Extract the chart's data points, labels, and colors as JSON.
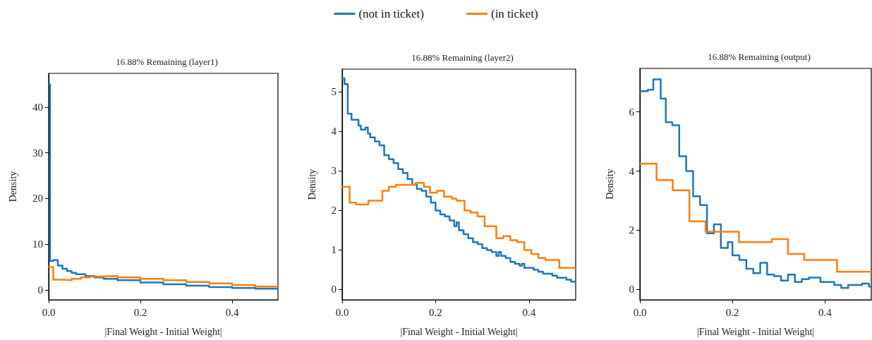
{
  "chart_data": [
    {
      "type": "step",
      "title": "16.88% Remaining (layer1)",
      "xlabel": "|Final Weight - Initial Weight|",
      "ylabel": "Density",
      "legend": "top",
      "grid": false,
      "xlim": [
        0,
        0.5
      ],
      "xticks": [
        {
          "value": 0,
          "label": "0.0"
        },
        {
          "value": 0.2,
          "label": "0.2"
        },
        {
          "value": 0.4,
          "label": "0.4"
        }
      ],
      "ylim": [
        -2.2,
        47.4
      ],
      "yticks": [
        0,
        10,
        20,
        30,
        40
      ],
      "series": [
        {
          "name": "(not in ticket)",
          "color": "#1f77b4",
          "x": [
            0,
            0.003,
            0.01,
            0.02,
            0.03,
            0.04,
            0.05,
            0.06,
            0.08,
            0.1,
            0.12,
            0.15,
            0.2,
            0.25,
            0.3,
            0.35,
            0.4,
            0.45,
            0.5
          ],
          "values": [
            45,
            6.3,
            6.5,
            5.3,
            4.6,
            4.1,
            3.7,
            3.4,
            3.0,
            2.7,
            2.4,
            2.1,
            1.6,
            1.2,
            0.9,
            0.6,
            0.4,
            0.25,
            0.15
          ]
        },
        {
          "name": "(in ticket)",
          "color": "#ff7f0e",
          "x": [
            0,
            0.01,
            0.03,
            0.05,
            0.07,
            0.09,
            0.11,
            0.15,
            0.2,
            0.25,
            0.3,
            0.35,
            0.4,
            0.45,
            0.5
          ],
          "values": [
            5.0,
            2.2,
            2.1,
            2.4,
            2.7,
            2.9,
            3.0,
            2.7,
            2.4,
            2.1,
            1.7,
            1.4,
            1.0,
            0.7,
            0.5
          ]
        }
      ]
    },
    {
      "type": "step",
      "title": "16.88% Remaining (layer2)",
      "xlabel": "|Final Weight - Initial Weight|",
      "ylabel": "Density",
      "grid": false,
      "xlim": [
        0,
        0.5
      ],
      "xticks": [
        {
          "value": 0,
          "label": "0.0"
        },
        {
          "value": 0.2,
          "label": "0.2"
        },
        {
          "value": 0.4,
          "label": "0.4"
        }
      ],
      "ylim": [
        -0.26,
        5.58
      ],
      "yticks": [
        0,
        1,
        2,
        3,
        4,
        5
      ],
      "series": [
        {
          "color": "#1f77b4",
          "x": [
            0,
            0.005,
            0.012,
            0.02,
            0.03,
            0.035,
            0.04,
            0.05,
            0.055,
            0.06,
            0.07,
            0.08,
            0.09,
            0.1,
            0.11,
            0.12,
            0.13,
            0.14,
            0.15,
            0.16,
            0.17,
            0.18,
            0.19,
            0.2,
            0.21,
            0.22,
            0.23,
            0.24,
            0.245,
            0.25,
            0.26,
            0.27,
            0.28,
            0.29,
            0.3,
            0.31,
            0.32,
            0.33,
            0.335,
            0.34,
            0.35,
            0.36,
            0.37,
            0.38,
            0.385,
            0.39,
            0.4,
            0.41,
            0.42,
            0.43,
            0.44,
            0.45,
            0.46,
            0.47,
            0.48,
            0.49,
            0.5
          ],
          "values": [
            5.35,
            5.2,
            4.45,
            4.3,
            4.3,
            4.15,
            4.05,
            4.1,
            3.95,
            3.85,
            3.75,
            3.65,
            3.4,
            3.3,
            3.2,
            3.05,
            2.95,
            2.8,
            2.65,
            2.55,
            2.5,
            2.35,
            2.2,
            2.0,
            1.9,
            1.85,
            1.75,
            1.6,
            1.7,
            1.5,
            1.4,
            1.3,
            1.2,
            1.15,
            1.05,
            1.0,
            0.95,
            0.85,
            0.95,
            0.85,
            0.8,
            0.7,
            0.65,
            0.6,
            0.65,
            0.55,
            0.55,
            0.5,
            0.45,
            0.4,
            0.4,
            0.35,
            0.3,
            0.3,
            0.25,
            0.2,
            0.2
          ]
        },
        {
          "color": "#ff7f0e",
          "x": [
            0,
            0.016,
            0.03,
            0.056,
            0.086,
            0.1,
            0.115,
            0.157,
            0.175,
            0.188,
            0.203,
            0.218,
            0.235,
            0.245,
            0.262,
            0.275,
            0.29,
            0.305,
            0.33,
            0.345,
            0.36,
            0.375,
            0.39,
            0.405,
            0.42,
            0.435,
            0.465,
            0.5
          ],
          "values": [
            2.6,
            2.2,
            2.15,
            2.25,
            2.5,
            2.6,
            2.65,
            2.7,
            2.6,
            2.45,
            2.5,
            2.35,
            2.3,
            2.25,
            2.0,
            1.95,
            1.85,
            1.6,
            1.3,
            1.35,
            1.25,
            1.2,
            1.0,
            0.9,
            0.8,
            0.75,
            0.55,
            0.55
          ]
        }
      ]
    },
    {
      "type": "step",
      "title": "16.88% Remaining (output)",
      "xlabel": "|Final Weight - Initial Weight|",
      "ylabel": "Density",
      "grid": false,
      "xlim": [
        0,
        0.5
      ],
      "xticks": [
        {
          "value": 0,
          "label": "0.0"
        },
        {
          "value": 0.2,
          "label": "0.2"
        },
        {
          "value": 0.4,
          "label": "0.4"
        }
      ],
      "ylim": [
        -0.35,
        7.47
      ],
      "yticks": [
        0,
        2,
        4,
        6
      ],
      "series": [
        {
          "color": "#1f77b4",
          "x": [
            0,
            0.017,
            0.029,
            0.045,
            0.056,
            0.07,
            0.085,
            0.1,
            0.115,
            0.13,
            0.145,
            0.16,
            0.175,
            0.19,
            0.2,
            0.215,
            0.23,
            0.245,
            0.26,
            0.275,
            0.29,
            0.305,
            0.32,
            0.335,
            0.35,
            0.365,
            0.38,
            0.39,
            0.41,
            0.42,
            0.435,
            0.45,
            0.465,
            0.48,
            0.495,
            0.5
          ],
          "values": [
            6.7,
            6.75,
            7.1,
            6.45,
            5.65,
            5.55,
            4.5,
            4.0,
            3.15,
            2.85,
            1.9,
            2.2,
            1.4,
            1.6,
            1.15,
            1.0,
            0.7,
            0.55,
            0.9,
            0.5,
            0.45,
            0.3,
            0.5,
            0.25,
            0.35,
            0.4,
            0.4,
            0.25,
            0.25,
            0.15,
            0.05,
            0.15,
            0.15,
            0.2,
            0.1,
            0.1
          ]
        },
        {
          "color": "#ff7f0e",
          "x": [
            0,
            0.036,
            0.071,
            0.107,
            0.142,
            0.214,
            0.285,
            0.32,
            0.355,
            0.426,
            0.5
          ],
          "values": [
            4.25,
            3.7,
            3.35,
            2.3,
            1.95,
            1.6,
            1.7,
            1.2,
            1.0,
            0.6,
            0.6
          ]
        }
      ]
    }
  ]
}
